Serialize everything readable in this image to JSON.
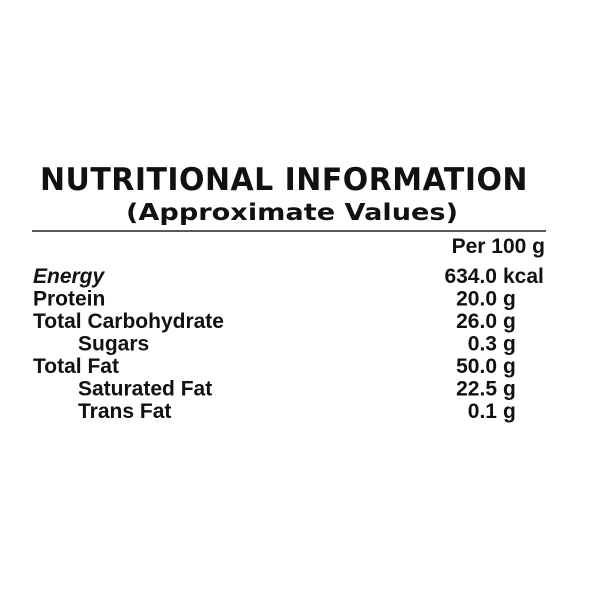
{
  "label": {
    "title": "NUTRITIONAL INFORMATION",
    "subtitle": "(Approximate Values)",
    "column_header": "Per 100 g",
    "rows": [
      {
        "name": "Energy",
        "value": "634.0",
        "unit": "kcal"
      },
      {
        "name": "Protein",
        "value": "20.0",
        "unit": "g"
      },
      {
        "name": "Total Carbohydrate",
        "value": "26.0",
        "unit": "g"
      },
      {
        "name": "Sugars",
        "value": "0.3",
        "unit": "g"
      },
      {
        "name": "Total Fat",
        "value": "50.0",
        "unit": "g"
      },
      {
        "name": "Saturated Fat",
        "value": "22.5",
        "unit": "g"
      },
      {
        "name": "Trans Fat",
        "value": "0.1",
        "unit": "g"
      }
    ]
  }
}
